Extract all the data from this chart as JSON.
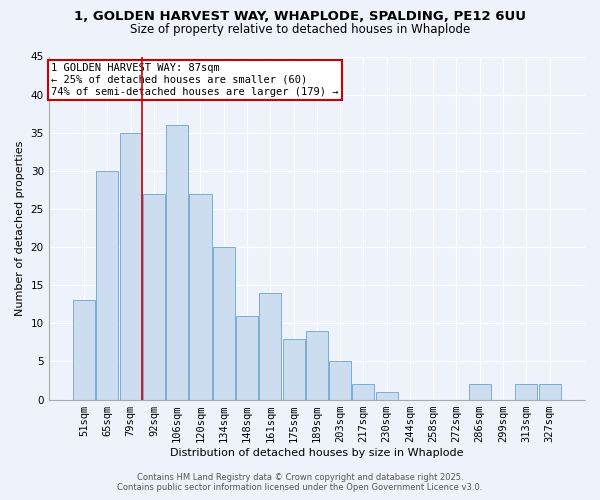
{
  "title1": "1, GOLDEN HARVEST WAY, WHAPLODE, SPALDING, PE12 6UU",
  "title2": "Size of property relative to detached houses in Whaplode",
  "xlabel": "Distribution of detached houses by size in Whaplode",
  "ylabel": "Number of detached properties",
  "bar_labels": [
    "51sqm",
    "65sqm",
    "79sqm",
    "92sqm",
    "106sqm",
    "120sqm",
    "134sqm",
    "148sqm",
    "161sqm",
    "175sqm",
    "189sqm",
    "203sqm",
    "217sqm",
    "230sqm",
    "244sqm",
    "258sqm",
    "272sqm",
    "286sqm",
    "299sqm",
    "313sqm",
    "327sqm"
  ],
  "bar_values": [
    13,
    30,
    35,
    27,
    36,
    27,
    20,
    11,
    14,
    8,
    9,
    5,
    2,
    1,
    0,
    0,
    0,
    2,
    0,
    2,
    2
  ],
  "bar_color": "#ccddf0",
  "bar_edge_color": "#7aadd4",
  "vline_x": 2.5,
  "vline_color": "#cc0000",
  "annotation_text": "1 GOLDEN HARVEST WAY: 87sqm\n← 25% of detached houses are smaller (60)\n74% of semi-detached houses are larger (179) →",
  "annotation_box_color": "#ffffff",
  "annotation_box_edge": "#cc0000",
  "ylim": [
    0,
    45
  ],
  "yticks": [
    0,
    5,
    10,
    15,
    20,
    25,
    30,
    35,
    40,
    45
  ],
  "footer1": "Contains HM Land Registry data © Crown copyright and database right 2025.",
  "footer2": "Contains public sector information licensed under the Open Government Licence v3.0.",
  "background_color": "#eef2fb",
  "grid_color": "#ffffff",
  "title_fontsize": 9.5,
  "subtitle_fontsize": 8.5,
  "axis_label_fontsize": 8.0,
  "tick_fontsize": 7.5,
  "annotation_fontsize": 7.5,
  "footer_fontsize": 6.0
}
